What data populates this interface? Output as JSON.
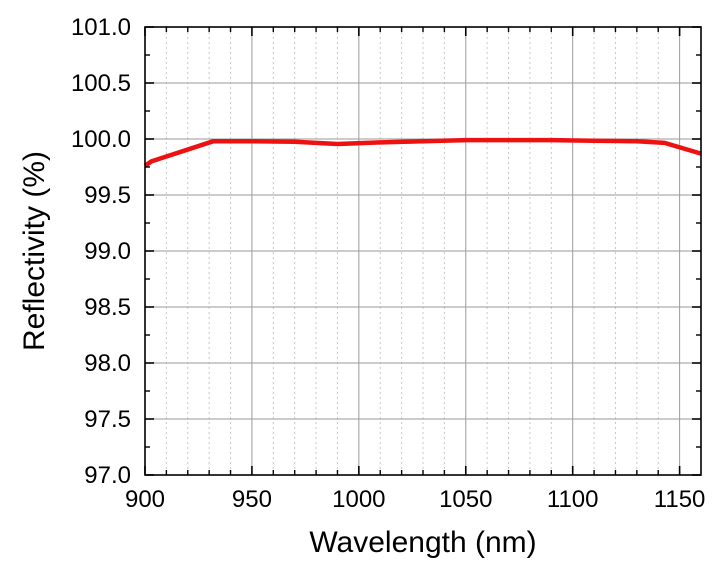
{
  "chart_data": {
    "type": "line",
    "title": "",
    "xlabel": "Wavelength (nm)",
    "ylabel": "Reflectivity (%)",
    "xlim": [
      900,
      1160
    ],
    "ylim": [
      97.0,
      101.0
    ],
    "x_ticks": [
      900,
      950,
      1000,
      1050,
      1100,
      1150
    ],
    "x_tick_labels": [
      "900",
      "950",
      "1000",
      "1050",
      "1100",
      "1150"
    ],
    "x_minor_ticks": [
      910,
      920,
      930,
      940,
      960,
      970,
      980,
      990,
      1010,
      1020,
      1030,
      1040,
      1060,
      1070,
      1080,
      1090,
      1110,
      1120,
      1130,
      1140
    ],
    "y_ticks": [
      97.0,
      97.5,
      98.0,
      98.5,
      99.0,
      99.5,
      100.0,
      100.5,
      101.0
    ],
    "y_tick_labels": [
      "97.0",
      "97.5",
      "98.0",
      "98.5",
      "99.0",
      "99.5",
      "100.0",
      "100.5",
      "101.0"
    ],
    "grid": "on",
    "legend": "none",
    "series": [
      {
        "color": "#ee1111",
        "x": [
          900,
          903,
          932,
          950,
          970,
          990,
          1010,
          1030,
          1050,
          1070,
          1090,
          1110,
          1130,
          1143,
          1160
        ],
        "y": [
          99.76,
          99.8,
          99.98,
          99.98,
          99.975,
          99.955,
          99.97,
          99.98,
          99.99,
          99.99,
          99.99,
          99.985,
          99.98,
          99.965,
          99.87
        ]
      }
    ]
  }
}
